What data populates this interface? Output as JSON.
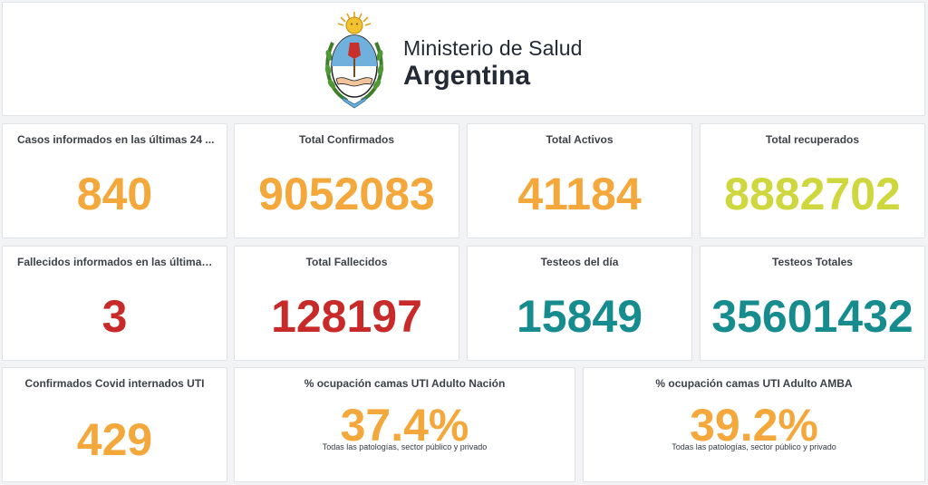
{
  "header": {
    "ministry_line1": "Ministerio de Salud",
    "ministry_line2": "Argentina"
  },
  "colors": {
    "orange": "#f4a73a",
    "lime": "#cfd73e",
    "red": "#c82a2a",
    "teal": "#178c8e"
  },
  "cards": {
    "casos24": {
      "title": "Casos informados en las últimas 24 ...",
      "value": "840"
    },
    "confirmados": {
      "title": "Total Confirmados",
      "value": "9052083"
    },
    "activos": {
      "title": "Total Activos",
      "value": "41184"
    },
    "recuperados": {
      "title": "Total recuperados",
      "value": "8882702"
    },
    "fallecidos24": {
      "title": "Fallecidos informados en las últimas ...",
      "value": "3"
    },
    "fallecidos": {
      "title": "Total Fallecidos",
      "value": "128197"
    },
    "testeos_dia": {
      "title": "Testeos del día",
      "value": "15849"
    },
    "testeos_totales": {
      "title": "Testeos Totales",
      "value": "35601432"
    },
    "internados_uti": {
      "title": "Confirmados Covid internados UTI",
      "value": "429"
    },
    "uti_nacion": {
      "title": "% ocupación camas UTI Adulto Nación",
      "value": "37.4%",
      "note": "Todas las patologías, sector público y privado"
    },
    "uti_amba": {
      "title": "% ocupación camas UTI Adulto AMBA",
      "value": "39.2%",
      "note": "Todas las patologías, sector público y privado"
    }
  }
}
